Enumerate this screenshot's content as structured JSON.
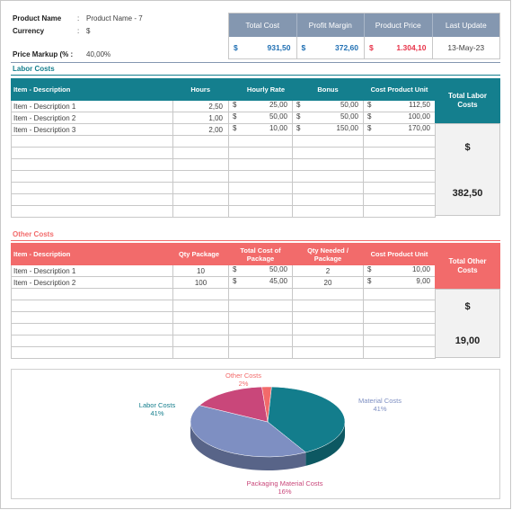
{
  "info": {
    "product_name_label": "Product Name",
    "product_name_value": "Product Name - 7",
    "currency_label": "Currency",
    "currency_value": "$",
    "markup_label": "Price Markup (% :",
    "markup_value": "40,00%"
  },
  "summary": {
    "headers": [
      "Total Cost",
      "Profit Margin",
      "Product Price",
      "Last Update"
    ],
    "currency": "$",
    "total_cost": "931,50",
    "profit_margin": "372,60",
    "product_price": "1.304,10",
    "last_update": "13-May-23"
  },
  "labor": {
    "title": "Labor Costs",
    "headers": [
      "Item - Description",
      "Hours",
      "Hourly Rate",
      "Bonus",
      "Cost Product Unit"
    ],
    "total_label": "Total Labor Costs",
    "total_currency": "$",
    "total_value": "382,50",
    "rows": [
      {
        "desc": "Item - Description 1",
        "hours": "2,50",
        "rate": "25,00",
        "bonus": "50,00",
        "cost": "112,50"
      },
      {
        "desc": "Item - Description 2",
        "hours": "1,00",
        "rate": "50,00",
        "bonus": "50,00",
        "cost": "100,00"
      },
      {
        "desc": "Item - Description 3",
        "hours": "2,00",
        "rate": "10,00",
        "bonus": "150,00",
        "cost": "170,00"
      }
    ]
  },
  "other": {
    "title": "Other Costs",
    "headers": [
      "Item - Description",
      "Qty Package",
      "Total Cost of Package",
      "Qty Needed / Package",
      "Cost Product Unit"
    ],
    "total_label": "Total Other Costs",
    "total_currency": "$",
    "total_value": "19,00",
    "rows": [
      {
        "desc": "Item - Description 1",
        "qty": "10",
        "total": "50,00",
        "needed": "2",
        "cost": "10,00"
      },
      {
        "desc": "Item - Description 2",
        "qty": "100",
        "total": "45,00",
        "needed": "20",
        "cost": "9,00"
      }
    ]
  },
  "pie": {
    "slices": [
      {
        "name": "Labor Costs",
        "pct": "41%",
        "value": 41,
        "color": "#137d8c"
      },
      {
        "name": "Material Costs",
        "pct": "41%",
        "value": 41,
        "color": "#7e8fc2"
      },
      {
        "name": "Packaging Material Costs",
        "pct": "16%",
        "value": 16,
        "color": "#c9477a"
      },
      {
        "name": "Other Costs",
        "pct": "2%",
        "value": 2,
        "color": "#f26a6a"
      }
    ]
  },
  "colors": {
    "teal": "#147f8e",
    "coral": "#f26b6b",
    "slate": "#8497b0",
    "blue_text": "#1f6fb3",
    "red_text": "#e8344a"
  }
}
